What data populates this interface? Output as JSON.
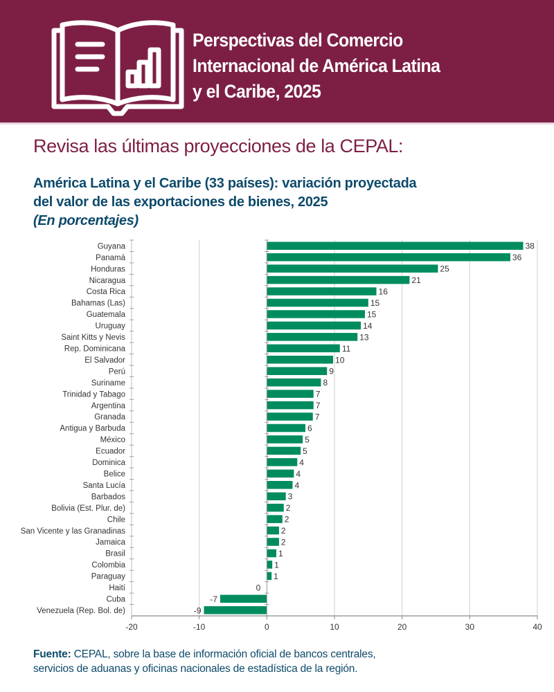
{
  "header": {
    "title_lines": [
      "Perspectivas del Comercio",
      "Internacional de América Latina",
      "y el Caribe, 2025"
    ],
    "icon": "open-book-chart-icon",
    "background_color": "#7d1f45"
  },
  "headline": "Revisa las últimas proyecciones de la CEPAL:",
  "chart_title": {
    "line1": "América Latina y el Caribe (33 países): variación proyectada",
    "line2": "del valor de las exportaciones de bienes, 2025",
    "units": "(En porcentajes)"
  },
  "source": {
    "label": "Fuente:",
    "text_line1": " CEPAL, sobre la base de información oficial de bancos centrales,",
    "text_line2": "servicios de aduanas y oficinas nacionales de estadística de la región."
  },
  "colors": {
    "bar": "#008c5f",
    "headline": "#7d1f45",
    "title": "#0d4a6b",
    "grid": "#d9d9d9"
  },
  "chart_data": {
    "type": "bar",
    "orientation": "horizontal",
    "title": "América Latina y el Caribe (33 países): variación proyectada del valor de las exportaciones de bienes, 2025",
    "subtitle": "(En porcentajes)",
    "xlabel": "",
    "ylabel": "",
    "xlim": [
      -20,
      40
    ],
    "xticks": [
      -20,
      -10,
      0,
      10,
      20,
      30,
      40
    ],
    "grid": true,
    "legend": "none",
    "categories": [
      "Guyana",
      "Panamá",
      "Honduras",
      "Nicaragua",
      "Costa Rica",
      "Bahamas (Las)",
      "Guatemala",
      "Uruguay",
      "Saint Kitts y Nevis",
      "Rep. Dominicana",
      "El Salvador",
      "Perú",
      "Suriname",
      "Trinidad y Tabago",
      "Argentina",
      "Granada",
      "Antigua y Barbuda",
      "México",
      "Ecuador",
      "Dominica",
      "Belice",
      "Santa Lucía",
      "Barbados",
      "Bolivia (Est. Plur. de)",
      "Chile",
      "San Vicente y las Granadinas",
      "Jamaica",
      "Brasil",
      "Colombia",
      "Paraguay",
      "Haití",
      "Cuba",
      "Venezuela (Rep. Bol. de)"
    ],
    "values": [
      38,
      36,
      25,
      21,
      16,
      15,
      15,
      14,
      13,
      11,
      10,
      9,
      8,
      7,
      7,
      7,
      6,
      5,
      5,
      4,
      4,
      4,
      3,
      2,
      2,
      2,
      2,
      1,
      1,
      1,
      0,
      -7,
      -9
    ],
    "bar_lengths_estimated": [
      37.9,
      36.0,
      25.3,
      21.1,
      16.2,
      15.0,
      14.5,
      13.9,
      13.4,
      10.8,
      9.8,
      8.9,
      8.0,
      6.9,
      6.9,
      6.8,
      5.7,
      5.3,
      5.0,
      4.5,
      4.0,
      3.8,
      2.8,
      2.5,
      2.3,
      1.8,
      1.8,
      1.4,
      0.8,
      0.7,
      0,
      -6.9,
      -9.3
    ],
    "data_labels": [
      "38",
      "36",
      "25",
      "21",
      "16",
      "15",
      "15",
      "14",
      "13",
      "11",
      "10",
      "9",
      "8",
      "7",
      "7",
      "7",
      "6",
      "5",
      "5",
      "4",
      "4",
      "4",
      "3",
      "2",
      "2",
      "2",
      "2",
      "1",
      "1",
      "1",
      "0",
      "-7",
      "-9"
    ]
  }
}
